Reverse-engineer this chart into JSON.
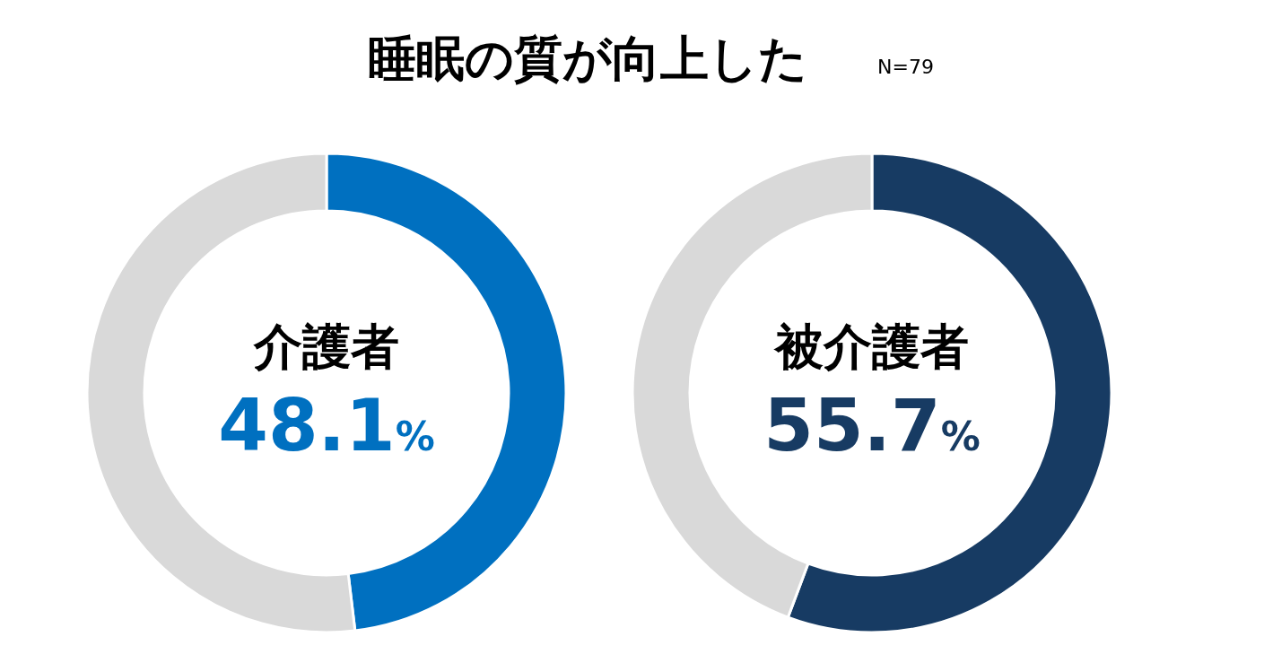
{
  "chart_data": [
    {
      "type": "donut",
      "title": "睡眠の質が向上した",
      "categories": [
        "介護者",
        null
      ],
      "values": [
        48.1,
        51.9
      ],
      "colors": [
        "#0070c0",
        "#d9d9d9"
      ],
      "value_labels": [
        "48.1%",
        null
      ]
    },
    {
      "type": "donut",
      "annotations": [
        "N=79"
      ],
      "categories": [
        "被介護者",
        null
      ],
      "values": [
        55.7,
        44.3
      ],
      "colors": [
        "#173b63",
        "#d9d9d9"
      ],
      "value_labels": [
        "55.7%",
        null
      ]
    }
  ]
}
